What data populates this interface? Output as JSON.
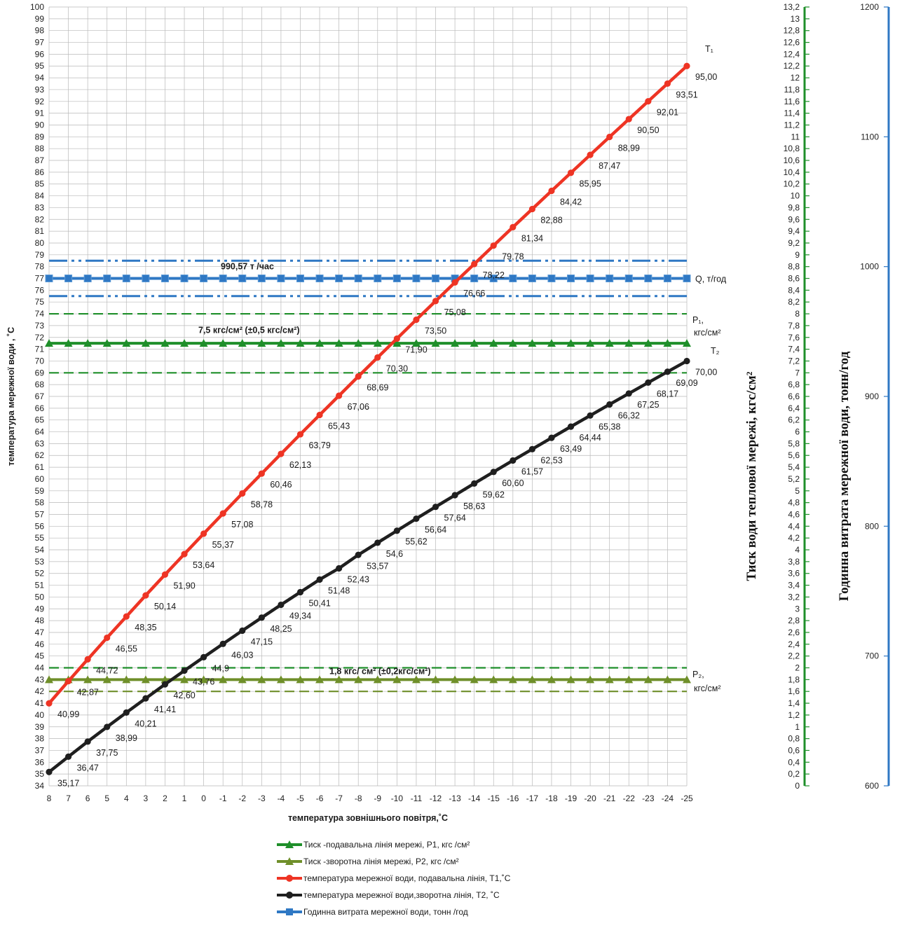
{
  "colors": {
    "t1": "#ee3424",
    "t2": "#1f1f1f",
    "p1": "#1f8f2a",
    "p2": "#6f8f2a",
    "q": "#2f78c4",
    "grid": "#b9b9b9"
  },
  "chart_data": {
    "type": "line",
    "x": [
      8,
      7,
      6,
      5,
      4,
      3,
      2,
      1,
      0,
      -1,
      -2,
      -3,
      -4,
      -5,
      -6,
      -7,
      -8,
      -9,
      -10,
      -11,
      -12,
      -13,
      -14,
      -15,
      -16,
      -17,
      -18,
      -19,
      -20,
      -21,
      -22,
      -23,
      -24,
      -25
    ],
    "xlabel": "температура зовнішнього повітря,˚С",
    "ylabel": "температура мережної води , ˚С",
    "ylim": [
      34,
      100
    ],
    "ylabel_right1": "Тиск води теплової мережі, кгс/см²",
    "ylim_right1": [
      0,
      13.2
    ],
    "ylabel_right2": "Годинна витрата мережної води, тонн/год",
    "ylim_right2": [
      600,
      1200
    ],
    "grid": true,
    "legend_position": "bottom",
    "series": [
      {
        "name": "Тиск -подавальна лінія мережі, Р1, кгс /см²",
        "axis": "pressure",
        "values": [
          7.5,
          7.5,
          7.5,
          7.5,
          7.5,
          7.5,
          7.5,
          7.5,
          7.5,
          7.5,
          7.5,
          7.5,
          7.5,
          7.5,
          7.5,
          7.5,
          7.5,
          7.5,
          7.5,
          7.5,
          7.5,
          7.5,
          7.5,
          7.5,
          7.5,
          7.5,
          7.5,
          7.5,
          7.5,
          7.5,
          7.5,
          7.5,
          7.5,
          7.5
        ],
        "band": [
          7.0,
          8.0
        ]
      },
      {
        "name": "Тиск -зворотна лінія мережі, Р2, кгс /см²",
        "axis": "pressure",
        "values": [
          1.8,
          1.8,
          1.8,
          1.8,
          1.8,
          1.8,
          1.8,
          1.8,
          1.8,
          1.8,
          1.8,
          1.8,
          1.8,
          1.8,
          1.8,
          1.8,
          1.8,
          1.8,
          1.8,
          1.8,
          1.8,
          1.8,
          1.8,
          1.8,
          1.8,
          1.8,
          1.8,
          1.8,
          1.8,
          1.8,
          1.8,
          1.8,
          1.8,
          1.8
        ],
        "band": [
          1.6,
          2.0
        ]
      },
      {
        "name": "температура мережної води, подавальна лінія, Т1,˚С",
        "axis": "temperature",
        "values": [
          40.99,
          42.87,
          44.72,
          46.55,
          48.35,
          50.14,
          51.9,
          53.64,
          55.37,
          57.08,
          58.78,
          60.46,
          62.13,
          63.79,
          65.43,
          67.06,
          68.69,
          70.3,
          71.9,
          73.5,
          75.08,
          76.66,
          78.22,
          79.78,
          81.34,
          82.88,
          84.42,
          85.95,
          87.47,
          88.99,
          90.5,
          92.01,
          93.51,
          95.0
        ],
        "labels": [
          "40,99",
          "42,87",
          "44,72",
          "46,55",
          "48,35",
          "50,14",
          "51,90",
          "53,64",
          "55,37",
          "57,08",
          "58,78",
          "60,46",
          "62,13",
          "63,79",
          "65,43",
          "67,06",
          "68,69",
          "70,30",
          "71,90",
          "73,50",
          "75,08",
          "76,66",
          "78,22",
          "79,78",
          "81,34",
          "82,88",
          "84,42",
          "85,95",
          "87,47",
          "88,99",
          "90,50",
          "92,01",
          "93,51",
          "95,00"
        ]
      },
      {
        "name": "температура мережної води,зворотна лінія, Т2, ˚С",
        "axis": "temperature",
        "values": [
          35.17,
          36.47,
          37.75,
          38.99,
          40.21,
          41.41,
          42.6,
          43.76,
          44.9,
          46.03,
          47.15,
          48.25,
          49.34,
          50.41,
          51.48,
          52.43,
          53.57,
          54.6,
          55.62,
          56.64,
          57.64,
          58.63,
          59.62,
          60.6,
          61.57,
          62.53,
          63.49,
          64.44,
          65.38,
          66.32,
          67.25,
          68.17,
          69.09,
          70.0
        ],
        "labels": [
          "35,17",
          "36,47",
          "37,75",
          "38,99",
          "40,21",
          "41,41",
          "42,60",
          "43,76",
          "44,9",
          "46,03",
          "47,15",
          "48,25",
          "49,34",
          "50,41",
          "51,48",
          "52,43",
          "53,57",
          "54,6",
          "55,62",
          "56,64",
          "57,64",
          "58,63",
          "59,62",
          "60,60",
          "61,57",
          "62,53",
          "63,49",
          "64,44",
          "65,38",
          "66,32",
          "67,25",
          "68,17",
          "69,09",
          "70,00"
        ]
      },
      {
        "name": "Годинна витрата мережної води, тонн /год",
        "axis": "flow",
        "values": [
          990.57,
          990.57,
          990.57,
          990.57,
          990.57,
          990.57,
          990.57,
          990.57,
          990.57,
          990.57,
          990.57,
          990.57,
          990.57,
          990.57,
          990.57,
          990.57,
          990.57,
          990.57,
          990.57,
          990.57,
          990.57,
          990.57,
          990.57,
          990.57,
          990.57,
          990.57,
          990.57,
          990.57,
          990.57,
          990.57,
          990.57,
          990.57,
          990.57,
          990.57
        ],
        "band_temperature_equivalent": [
          75.5,
          78.5
        ]
      }
    ],
    "annotations": {
      "t1_end": "Т₁",
      "t2_end": "Т₂",
      "q_end": "Q, т/год",
      "p1_end": "Р₁,",
      "p1_unit": "кгс/см²",
      "p2_end": "Р₂,",
      "p2_unit": "кгс/см²",
      "flow_value": "990,57  т /час",
      "p1_value": "7,5 кгс/см² (±0,5 кгс/см²)",
      "p2_value": "1,8 кгс/ см² (±0,2кгс/см²)"
    },
    "pressure_ticks": [
      "0",
      "0,2",
      "0,4",
      "0,6",
      "0,8",
      "1",
      "1,2",
      "1,4",
      "1,6",
      "1,8",
      "2",
      "2,2",
      "2,4",
      "2,6",
      "2,8",
      "3",
      "3,2",
      "3,4",
      "3,6",
      "3,8",
      "4",
      "4,2",
      "4,4",
      "4,6",
      "4,8",
      "5",
      "5,2",
      "5,4",
      "5,6",
      "5,8",
      "6",
      "6,2",
      "6,4",
      "6,6",
      "6,8",
      "7",
      "7,2",
      "7,4",
      "7,6",
      "7,8",
      "8",
      "8,2",
      "8,4",
      "8,6",
      "8,8",
      "9",
      "9,2",
      "9,4",
      "9,6",
      "9,8",
      "10",
      "10,2",
      "10,4",
      "10,6",
      "10,8",
      "11",
      "11,2",
      "11,4",
      "11,6",
      "11,8",
      "12",
      "12,2",
      "12,4",
      "12,6",
      "12,8",
      "13",
      "13,2"
    ],
    "flow_ticks": [
      "600",
      "700",
      "800",
      "900",
      "1000",
      "1100",
      "1200"
    ]
  }
}
